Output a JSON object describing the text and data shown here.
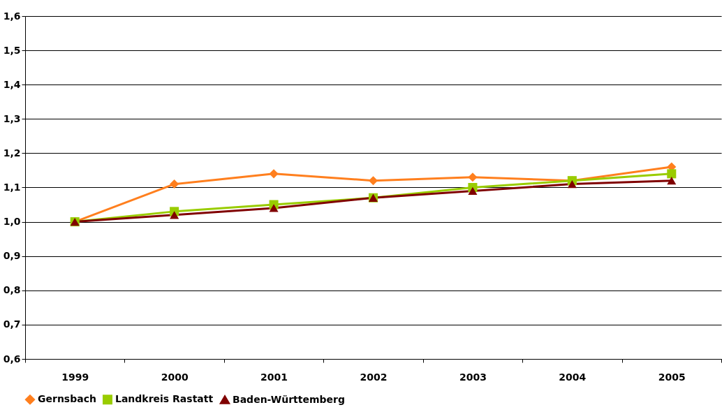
{
  "chart_data": {
    "type": "line",
    "categories": [
      "1999",
      "2000",
      "2001",
      "2002",
      "2003",
      "2004",
      "2005"
    ],
    "series": [
      {
        "name": "Gernsbach",
        "color": "#ff7f1e",
        "marker": "diamond",
        "values": [
          1.0,
          1.11,
          1.14,
          1.12,
          1.13,
          1.12,
          1.16
        ]
      },
      {
        "name": "Landkreis Rastatt",
        "color": "#99cc00",
        "marker": "square",
        "values": [
          1.0,
          1.03,
          1.05,
          1.07,
          1.1,
          1.12,
          1.14
        ]
      },
      {
        "name": "Baden-Württemberg",
        "color": "#800000",
        "marker": "triangle",
        "values": [
          1.0,
          1.02,
          1.04,
          1.07,
          1.09,
          1.11,
          1.12
        ]
      }
    ],
    "ylim": [
      0.6,
      1.6
    ],
    "yticks": [
      {
        "value": 0.6,
        "label": "0,6"
      },
      {
        "value": 0.7,
        "label": "0,7"
      },
      {
        "value": 0.8,
        "label": "0,8"
      },
      {
        "value": 0.9,
        "label": "0,9"
      },
      {
        "value": 1.0,
        "label": "1,0"
      },
      {
        "value": 1.1,
        "label": "1,1"
      },
      {
        "value": 1.2,
        "label": "1,2"
      },
      {
        "value": 1.3,
        "label": "1,3"
      },
      {
        "value": 1.4,
        "label": "1,4"
      },
      {
        "value": 1.5,
        "label": "1,5"
      },
      {
        "value": 1.6,
        "label": "1,6"
      }
    ],
    "grid": "y",
    "legend": "bottom",
    "line_style": "solid"
  }
}
